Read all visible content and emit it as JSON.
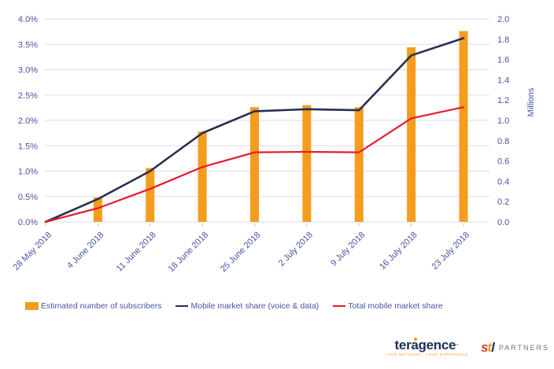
{
  "page": {
    "background": "#ffffff"
  },
  "chart_data": {
    "type": "combo",
    "title": "",
    "categories": [
      "28 May 2018",
      "4 June 2018",
      "11 June 2018",
      "18 June 2018",
      "25 June 2018",
      "2 July 2018",
      "9 July 2018",
      "16 July 2018",
      "23 July 2018"
    ],
    "series": [
      {
        "name": "Estimated number of subscribers",
        "type": "bar",
        "axis": "right",
        "unit": "millions",
        "color": "#f59c1c",
        "values": [
          0,
          0.24,
          0.53,
          0.89,
          1.13,
          1.15,
          1.13,
          1.72,
          1.88
        ]
      },
      {
        "name": "Mobile market share (voice & data)",
        "type": "line",
        "axis": "left",
        "unit": "percent",
        "color": "#26304d",
        "values": [
          0,
          0.45,
          1.0,
          1.75,
          2.18,
          2.22,
          2.2,
          3.28,
          3.62
        ]
      },
      {
        "name": "Total mobile market share",
        "type": "line",
        "axis": "left",
        "unit": "percent",
        "color": "#e8192c",
        "values": [
          0,
          0.27,
          0.65,
          1.08,
          1.37,
          1.38,
          1.37,
          2.04,
          2.26
        ]
      }
    ],
    "left_axis": {
      "min": 0,
      "max": 4,
      "format": "percent",
      "ticks": [
        "4.0%",
        "3.5%",
        "3.0%",
        "2.5%",
        "2.0%",
        "1.5%",
        "1.0%",
        "0.5%",
        "0.0%"
      ]
    },
    "right_axis": {
      "min": 0,
      "max": 2,
      "label": "Millions",
      "ticks": [
        "2.0",
        "1.8",
        "1.6",
        "1.4",
        "1.2",
        "1.0",
        "0.8",
        "0.6",
        "0.4",
        "0.2",
        "0.0"
      ]
    },
    "grid": true,
    "legend_position": "bottom",
    "colors": {
      "axis_text": "#4754a4",
      "gridline": "#dadded",
      "tick_mark": "#c3c8dc"
    }
  },
  "logos": {
    "teragence": {
      "name": "teragence",
      "tm": "™",
      "tagline": "YOUR NETWORK · YOUR EXPERIENCE",
      "dot_color": "#f59c1c",
      "text_color": "#1d3050"
    },
    "stl": {
      "mark": [
        "s",
        "t",
        "l"
      ],
      "mark_colors": [
        "#d6392f",
        "#f59c1c",
        "#2b3a68"
      ],
      "name": "PARTNERS",
      "name_color": "#6e7480"
    }
  }
}
